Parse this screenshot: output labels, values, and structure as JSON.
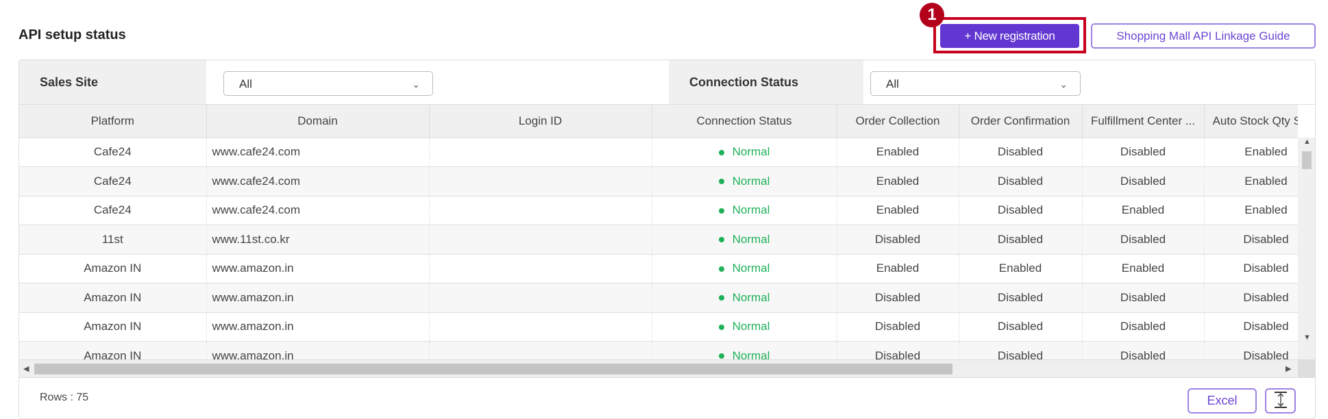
{
  "header": {
    "title": "API setup status",
    "new_registration": "+ New registration",
    "guide": "Shopping Mall API Linkage Guide",
    "step_badge": "1"
  },
  "filters": {
    "sales_site_label": "Sales Site",
    "sales_site_value": "All",
    "connection_status_label": "Connection Status",
    "connection_status_value": "All"
  },
  "colors": {
    "accent": "#6236d1",
    "highlight": "#c8001e",
    "normal_status": "#1fb15a"
  },
  "table": {
    "columns": [
      "Platform",
      "Domain",
      "Login ID",
      "Connection Status",
      "Order Collection",
      "Order Confirmation",
      "Fulfillment Center ...",
      "Auto Stock Qty Sync"
    ],
    "rows": [
      [
        "Cafe24",
        "www.cafe24.com",
        "",
        "Normal",
        "Enabled",
        "Disabled",
        "Disabled",
        "Enabled"
      ],
      [
        "Cafe24",
        "www.cafe24.com",
        "",
        "Normal",
        "Enabled",
        "Disabled",
        "Disabled",
        "Enabled"
      ],
      [
        "Cafe24",
        "www.cafe24.com",
        "",
        "Normal",
        "Enabled",
        "Disabled",
        "Enabled",
        "Enabled"
      ],
      [
        "11st",
        "www.11st.co.kr",
        "",
        "Normal",
        "Disabled",
        "Disabled",
        "Disabled",
        "Disabled"
      ],
      [
        "Amazon IN",
        "www.amazon.in",
        "",
        "Normal",
        "Enabled",
        "Enabled",
        "Enabled",
        "Disabled"
      ],
      [
        "Amazon IN",
        "www.amazon.in",
        "",
        "Normal",
        "Disabled",
        "Disabled",
        "Disabled",
        "Disabled"
      ],
      [
        "Amazon IN",
        "www.amazon.in",
        "",
        "Normal",
        "Disabled",
        "Disabled",
        "Disabled",
        "Disabled"
      ],
      [
        "Amazon IN",
        "www.amazon.in",
        "",
        "Normal",
        "Disabled",
        "Disabled",
        "Disabled",
        "Disabled"
      ]
    ]
  },
  "footer": {
    "rows_label": "Rows : 75",
    "excel": "Excel"
  }
}
